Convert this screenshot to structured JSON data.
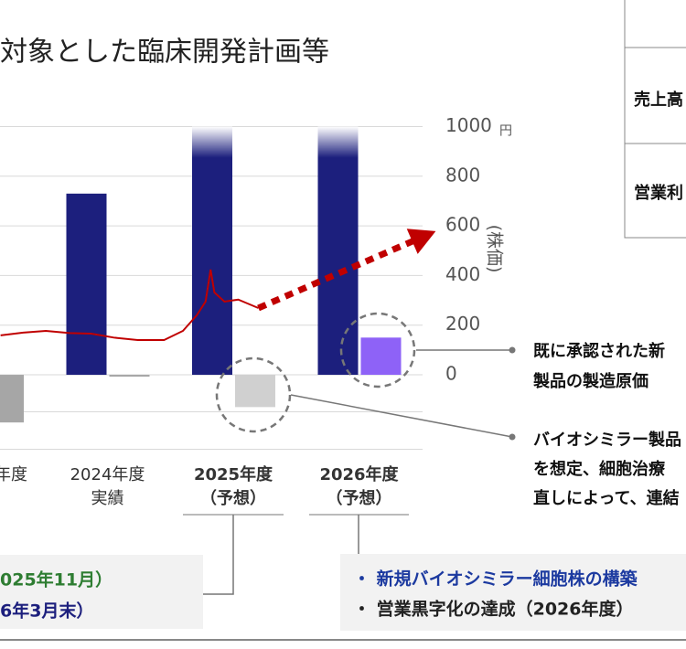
{
  "header": {
    "title": "対象とした臨床開発計画等"
  },
  "table": {
    "rows": [
      [
        "売上高"
      ],
      [
        "営業利"
      ]
    ]
  },
  "chart_data": {
    "type": "bar",
    "categories": [
      "年度",
      "2024年度",
      "2025年度",
      "2026年度"
    ],
    "category_notes": [
      null,
      "実績",
      "（予想）",
      "（予想）"
    ],
    "emphasis": [
      false,
      false,
      true,
      true
    ],
    "series": [
      {
        "color": "#1c1f7d",
        "values": [
          null,
          730,
          1000,
          1000
        ]
      },
      {
        "colors": [
          "#a6a6a6",
          "#a6a6a6",
          "#d0d0d0",
          "#8e62f7"
        ],
        "values": [
          -192,
          0,
          -130,
          150
        ]
      },
      {
        "type": "line",
        "color": "#c00000",
        "x": [
          0.15,
          0.33,
          0.51,
          0.7,
          0.87,
          1.05,
          1.24,
          1.45,
          1.6,
          1.71,
          1.78,
          1.82,
          1.85,
          1.93,
          2.04,
          2.2
        ],
        "values": [
          159,
          170,
          177,
          168,
          166,
          150,
          140,
          140,
          177,
          240,
          295,
          424,
          332,
          295,
          303,
          269
        ]
      },
      {
        "type": "line",
        "style": "dashed",
        "color": "#c00000",
        "x": [
          2.2,
          3.53
        ],
        "values": [
          269,
          561
        ]
      }
    ],
    "ylim": [
      -300,
      1000
    ],
    "yticks": [
      0,
      200,
      400,
      600,
      800,
      1000
    ],
    "unit": "円",
    "ylabel": "(株価)",
    "grid": true
  },
  "annotations": [
    [
      "既に承認された新",
      "製品の製造原価"
    ],
    [
      "バイオシミラー製品",
      "を想定、細胞治療",
      "直しによって、連結"
    ]
  ],
  "notes": {
    "left": [
      "025年11月）",
      "6年3月末）"
    ],
    "right": [
      "・ 新規バイオシミラー細胞株の構築",
      "・ 営業黒字化の達成（2026年度）"
    ]
  }
}
